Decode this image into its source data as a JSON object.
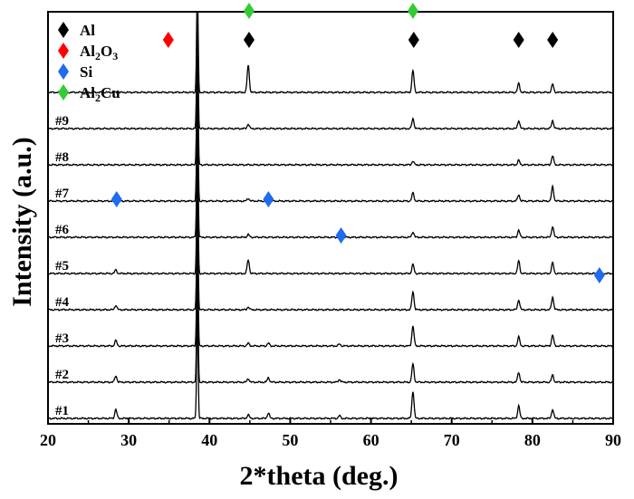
{
  "chart_data": {
    "type": "line",
    "xlabel": "2*theta (deg.)",
    "ylabel": "Intensity (a.u.)",
    "xlim": [
      20,
      90
    ],
    "xticks": [
      20,
      30,
      40,
      50,
      60,
      70,
      80,
      90
    ],
    "grid": false,
    "legend_position": "top-left",
    "legend": [
      {
        "label": "Al",
        "base": "Al",
        "color": "#000000",
        "icon": "diamond-icon"
      },
      {
        "label": "Al2O3",
        "base": "Al",
        "sub1": "2",
        "mid": "O",
        "sub2": "3",
        "color": "#ff0000",
        "icon": "diamond-icon"
      },
      {
        "label": "Si",
        "base": "Si",
        "color": "#1e6cf0",
        "icon": "diamond-icon"
      },
      {
        "label": "Al2Cu",
        "base": "Al",
        "sub1": "2",
        "mid": "Cu",
        "sub2": "",
        "color": "#33cc33",
        "icon": "diamond-icon"
      }
    ],
    "series": [
      {
        "name": "#1",
        "peaks": [
          [
            28.4,
            10
          ],
          [
            38.5,
            120
          ],
          [
            44.8,
            4
          ],
          [
            47.3,
            6
          ],
          [
            56.1,
            3
          ],
          [
            65.2,
            30
          ],
          [
            78.3,
            14
          ],
          [
            82.5,
            10
          ]
        ]
      },
      {
        "name": "#2",
        "peaks": [
          [
            28.4,
            7
          ],
          [
            38.5,
            120
          ],
          [
            44.8,
            4
          ],
          [
            47.3,
            5
          ],
          [
            56.1,
            3
          ],
          [
            65.2,
            20
          ],
          [
            78.3,
            11
          ],
          [
            82.5,
            8
          ]
        ]
      },
      {
        "name": "#3",
        "peaks": [
          [
            28.4,
            6
          ],
          [
            38.5,
            120
          ],
          [
            44.8,
            3
          ],
          [
            47.3,
            3
          ],
          [
            56.1,
            2
          ],
          [
            65.2,
            22
          ],
          [
            78.3,
            10
          ],
          [
            82.5,
            12
          ]
        ]
      },
      {
        "name": "#4",
        "peaks": [
          [
            28.4,
            5
          ],
          [
            38.5,
            120
          ],
          [
            44.8,
            3
          ],
          [
            65.2,
            20
          ],
          [
            78.3,
            11
          ],
          [
            82.5,
            14
          ]
        ]
      },
      {
        "name": "#5",
        "peaks": [
          [
            28.4,
            4
          ],
          [
            38.5,
            120
          ],
          [
            44.8,
            15
          ],
          [
            65.2,
            10
          ],
          [
            78.3,
            14
          ],
          [
            82.5,
            12
          ]
        ]
      },
      {
        "name": "#6",
        "peaks": [
          [
            38.5,
            120
          ],
          [
            44.8,
            3
          ],
          [
            65.2,
            6
          ],
          [
            78.3,
            8
          ],
          [
            82.5,
            12
          ]
        ]
      },
      {
        "name": "#7",
        "peaks": [
          [
            38.5,
            120
          ],
          [
            44.8,
            3
          ],
          [
            65.2,
            9
          ],
          [
            78.3,
            7
          ],
          [
            82.5,
            16
          ]
        ]
      },
      {
        "name": "#8",
        "peaks": [
          [
            38.5,
            120
          ],
          [
            65.2,
            4
          ],
          [
            78.3,
            5
          ],
          [
            82.5,
            10
          ]
        ]
      },
      {
        "name": "#9",
        "peaks": [
          [
            38.5,
            120
          ],
          [
            44.8,
            5
          ],
          [
            65.2,
            11
          ],
          [
            78.3,
            9
          ],
          [
            82.5,
            9
          ]
        ]
      },
      {
        "name": "",
        "peaks": [
          [
            38.5,
            120
          ],
          [
            44.8,
            30
          ],
          [
            65.2,
            24
          ],
          [
            78.3,
            10
          ],
          [
            82.5,
            9
          ]
        ]
      }
    ],
    "markers": [
      {
        "phase": "Al",
        "x": 44.9,
        "row": 10,
        "color": "#000000"
      },
      {
        "phase": "Al",
        "x": 65.3,
        "row": 10,
        "color": "#000000"
      },
      {
        "phase": "Al",
        "x": 78.3,
        "row": 10,
        "color": "#000000"
      },
      {
        "phase": "Al",
        "x": 82.5,
        "row": 10,
        "color": "#000000"
      },
      {
        "phase": "Al2O3",
        "x": 34.9,
        "row": 10,
        "color": "#ff0000"
      },
      {
        "phase": "Al2Cu",
        "x": 44.9,
        "row": 10.8,
        "color": "#33cc33"
      },
      {
        "phase": "Al2Cu",
        "x": 65.2,
        "row": 10.8,
        "color": "#33cc33"
      },
      {
        "phase": "Si",
        "x": 28.5,
        "row": 5.6,
        "color": "#1e6cf0"
      },
      {
        "phase": "Si",
        "x": 47.3,
        "row": 5.6,
        "color": "#1e6cf0"
      },
      {
        "phase": "Si",
        "x": 56.3,
        "row": 4.6,
        "color": "#1e6cf0"
      },
      {
        "phase": "Si",
        "x": 88.3,
        "row": 3.5,
        "color": "#1e6cf0"
      }
    ]
  }
}
